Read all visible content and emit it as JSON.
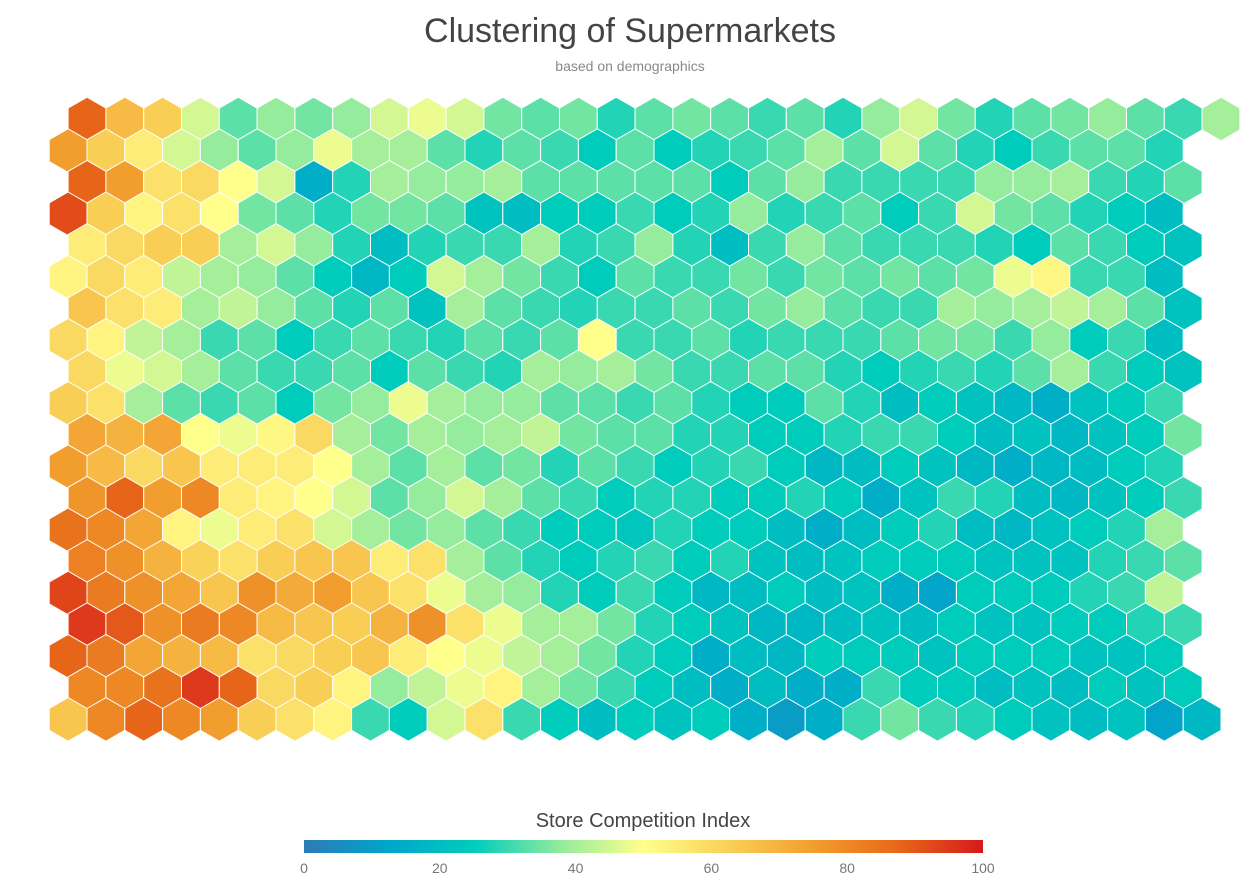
{
  "chart_data": {
    "type": "heatmap",
    "layout": "hexagonal",
    "title": "Clustering of Supermarkets",
    "subtitle": "based on demographics",
    "colorbar": {
      "title": "Store Competition Index",
      "range": [
        0,
        100
      ],
      "ticks": [
        "0",
        "20",
        "40",
        "60",
        "80",
        "100"
      ],
      "colorscale": [
        "#2c7bb6",
        "#00a6ca",
        "#00ccbc",
        "#90eb9d",
        "#ffff8c",
        "#f9d057",
        "#f29e2e",
        "#e76818",
        "#d7191c"
      ]
    },
    "grid": {
      "rows": 20,
      "cols": 31
    },
    "values": [
      [
        88,
        68,
        63,
        45,
        33,
        38,
        35,
        38,
        45,
        48,
        45,
        35,
        33,
        35,
        28,
        33,
        35,
        33,
        30,
        33,
        28,
        38,
        45,
        35,
        28,
        33,
        35,
        38,
        33,
        30,
        40
      ],
      [
        75,
        63,
        55,
        45,
        38,
        33,
        38,
        48,
        40,
        40,
        33,
        28,
        33,
        30,
        25,
        33,
        25,
        28,
        30,
        33,
        40,
        33,
        45,
        33,
        28,
        25,
        30,
        33,
        33,
        28,
        null
      ],
      [
        88,
        75,
        58,
        60,
        50,
        45,
        15,
        28,
        40,
        38,
        38,
        40,
        33,
        33,
        33,
        33,
        33,
        25,
        33,
        38,
        30,
        30,
        30,
        30,
        38,
        38,
        40,
        30,
        28,
        33,
        null
      ],
      [
        92,
        63,
        53,
        58,
        50,
        35,
        33,
        28,
        35,
        35,
        33,
        22,
        20,
        25,
        25,
        30,
        25,
        28,
        38,
        28,
        30,
        33,
        25,
        30,
        45,
        35,
        33,
        28,
        25,
        20,
        null
      ],
      [
        55,
        60,
        63,
        63,
        40,
        45,
        38,
        28,
        20,
        28,
        30,
        30,
        40,
        28,
        30,
        38,
        28,
        20,
        30,
        38,
        33,
        30,
        30,
        30,
        28,
        25,
        33,
        30,
        25,
        22,
        null
      ],
      [
        53,
        60,
        55,
        43,
        40,
        38,
        33,
        25,
        18,
        25,
        45,
        40,
        35,
        30,
        25,
        33,
        30,
        30,
        35,
        30,
        35,
        33,
        35,
        33,
        35,
        48,
        52,
        30,
        30,
        20,
        null
      ],
      [
        65,
        58,
        55,
        40,
        43,
        38,
        33,
        28,
        33,
        22,
        40,
        33,
        30,
        28,
        30,
        30,
        33,
        30,
        35,
        38,
        33,
        30,
        30,
        40,
        38,
        40,
        43,
        40,
        33,
        22,
        null
      ],
      [
        60,
        53,
        43,
        40,
        30,
        33,
        25,
        30,
        33,
        30,
        28,
        33,
        30,
        33,
        50,
        30,
        30,
        33,
        28,
        30,
        30,
        30,
        33,
        35,
        35,
        30,
        38,
        25,
        30,
        20,
        null
      ],
      [
        60,
        48,
        45,
        40,
        33,
        30,
        30,
        33,
        25,
        33,
        30,
        28,
        40,
        38,
        40,
        35,
        30,
        30,
        33,
        33,
        28,
        25,
        28,
        30,
        28,
        33,
        40,
        30,
        25,
        22,
        null
      ],
      [
        63,
        58,
        40,
        33,
        30,
        33,
        25,
        35,
        38,
        48,
        40,
        38,
        38,
        33,
        33,
        30,
        33,
        28,
        25,
        25,
        33,
        28,
        20,
        25,
        22,
        18,
        15,
        22,
        25,
        30,
        null
      ],
      [
        73,
        70,
        73,
        50,
        48,
        52,
        60,
        40,
        35,
        40,
        38,
        40,
        43,
        35,
        33,
        33,
        28,
        28,
        25,
        25,
        28,
        30,
        30,
        25,
        20,
        22,
        18,
        22,
        25,
        35,
        null
      ],
      [
        75,
        68,
        60,
        65,
        55,
        55,
        55,
        50,
        40,
        33,
        40,
        33,
        35,
        28,
        33,
        30,
        25,
        28,
        30,
        25,
        18,
        20,
        25,
        22,
        18,
        15,
        18,
        20,
        25,
        28,
        null
      ],
      [
        77,
        88,
        75,
        80,
        55,
        53,
        50,
        45,
        33,
        38,
        45,
        40,
        33,
        30,
        25,
        28,
        28,
        25,
        25,
        28,
        25,
        15,
        22,
        30,
        28,
        20,
        18,
        22,
        25,
        30,
        null
      ],
      [
        85,
        80,
        73,
        53,
        48,
        55,
        58,
        45,
        40,
        35,
        38,
        33,
        30,
        25,
        25,
        23,
        28,
        25,
        25,
        20,
        15,
        20,
        25,
        28,
        20,
        18,
        22,
        25,
        28,
        40,
        null
      ],
      [
        82,
        78,
        70,
        62,
        58,
        63,
        65,
        65,
        55,
        58,
        40,
        33,
        28,
        25,
        28,
        30,
        25,
        28,
        22,
        20,
        22,
        25,
        25,
        25,
        22,
        22,
        22,
        28,
        30,
        33,
        null
      ],
      [
        93,
        83,
        78,
        73,
        65,
        78,
        72,
        75,
        65,
        58,
        48,
        40,
        38,
        28,
        25,
        30,
        25,
        18,
        20,
        25,
        20,
        22,
        15,
        12,
        25,
        25,
        25,
        28,
        30,
        43,
        null
      ],
      [
        95,
        90,
        78,
        83,
        80,
        68,
        65,
        63,
        70,
        78,
        58,
        48,
        40,
        40,
        35,
        28,
        25,
        22,
        18,
        18,
        20,
        22,
        20,
        25,
        22,
        22,
        25,
        25,
        28,
        30,
        null
      ],
      [
        88,
        83,
        73,
        70,
        68,
        58,
        60,
        63,
        65,
        55,
        50,
        48,
        43,
        40,
        35,
        28,
        25,
        15,
        20,
        18,
        25,
        25,
        25,
        22,
        25,
        25,
        25,
        22,
        22,
        25,
        null
      ],
      [
        80,
        80,
        85,
        95,
        88,
        60,
        63,
        53,
        38,
        43,
        48,
        53,
        40,
        35,
        30,
        25,
        20,
        15,
        20,
        15,
        15,
        30,
        25,
        25,
        20,
        22,
        20,
        25,
        22,
        25,
        null
      ],
      [
        65,
        80,
        88,
        80,
        75,
        63,
        58,
        53,
        30,
        25,
        45,
        58,
        30,
        25,
        20,
        25,
        22,
        25,
        15,
        10,
        15,
        30,
        35,
        30,
        28,
        25,
        22,
        20,
        22,
        12,
        18
      ]
    ]
  }
}
